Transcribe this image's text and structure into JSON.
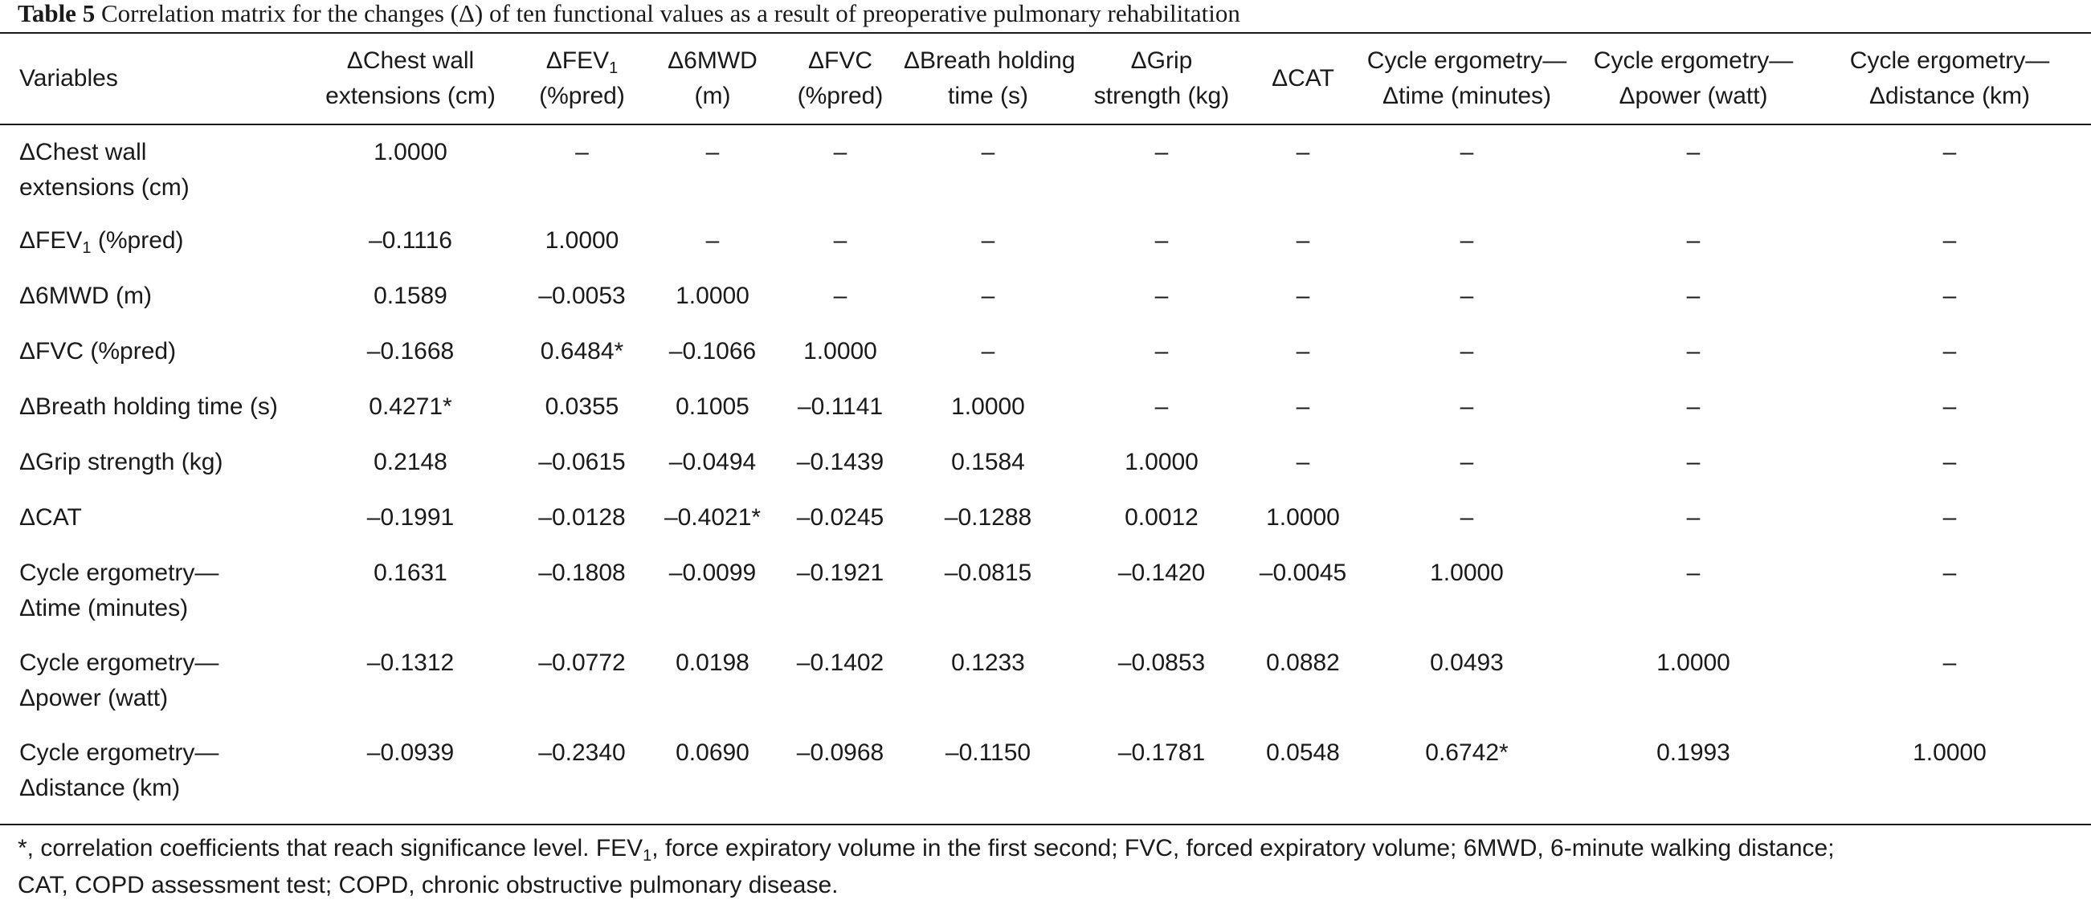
{
  "caption": {
    "label": "Table 5",
    "text": "Correlation matrix for the changes (Δ) of ten functional values as a result of preoperative pulmonary rehabilitation"
  },
  "header": {
    "variables": "Variables",
    "columns": [
      {
        "line1": "ΔChest wall",
        "line2": "extensions (cm)"
      },
      {
        "line1_pre": "ΔFEV",
        "line1_sub": "1",
        "line2": "(%pred)"
      },
      {
        "line1": "Δ6MWD",
        "line2": "(m)"
      },
      {
        "line1": "ΔFVC",
        "line2": "(%pred)"
      },
      {
        "line1": "ΔBreath holding",
        "line2": "time (s)"
      },
      {
        "line1": "ΔGrip",
        "line2": "strength (kg)"
      },
      {
        "line1": "ΔCAT",
        "line2": ""
      },
      {
        "line1": "Cycle ergometry—",
        "line2": "Δtime (minutes)"
      },
      {
        "line1": "Cycle ergometry—",
        "line2": "Δpower (watt)"
      },
      {
        "line1": "Cycle ergometry—",
        "line2": "Δdistance (km)"
      }
    ]
  },
  "rows": [
    {
      "label1": "ΔChest wall",
      "label2": "extensions (cm)",
      "values": [
        "1.0000",
        "–",
        "–",
        "–",
        "–",
        "–",
        "–",
        "–",
        "–",
        "–"
      ]
    },
    {
      "label_pre": "ΔFEV",
      "label_sub": "1",
      "label_post": " (%pred)",
      "values": [
        "–0.1116",
        "1.0000",
        "–",
        "–",
        "–",
        "–",
        "–",
        "–",
        "–",
        "–"
      ]
    },
    {
      "label1": "Δ6MWD (m)",
      "values": [
        "0.1589",
        "–0.0053",
        "1.0000",
        "–",
        "–",
        "–",
        "–",
        "–",
        "–",
        "–"
      ]
    },
    {
      "label1": "ΔFVC (%pred)",
      "values": [
        "–0.1668",
        "0.6484*",
        "–0.1066",
        "1.0000",
        "–",
        "–",
        "–",
        "–",
        "–",
        "–"
      ]
    },
    {
      "label1": "ΔBreath holding time (s)",
      "values": [
        "0.4271*",
        "0.0355",
        "0.1005",
        "–0.1141",
        "1.0000",
        "–",
        "–",
        "–",
        "–",
        "–"
      ]
    },
    {
      "label1": "ΔGrip strength (kg)",
      "values": [
        "0.2148",
        "–0.0615",
        "–0.0494",
        "–0.1439",
        "0.1584",
        "1.0000",
        "–",
        "–",
        "–",
        "–"
      ]
    },
    {
      "label1": "ΔCAT",
      "values": [
        "–0.1991",
        "–0.0128",
        "–0.4021*",
        "–0.0245",
        "–0.1288",
        "0.0012",
        "1.0000",
        "–",
        "–",
        "–"
      ]
    },
    {
      "label1": "Cycle ergometry—",
      "label2": "Δtime (minutes)",
      "values": [
        "0.1631",
        "–0.1808",
        "–0.0099",
        "–0.1921",
        "–0.0815",
        "–0.1420",
        "–0.0045",
        "1.0000",
        "–",
        "–"
      ]
    },
    {
      "label1": "Cycle ergometry—",
      "label2": "Δpower (watt)",
      "values": [
        "–0.1312",
        "–0.0772",
        "0.0198",
        "–0.1402",
        "0.1233",
        "–0.0853",
        "0.0882",
        "0.0493",
        "1.0000",
        "–"
      ]
    },
    {
      "label1": "Cycle ergometry—",
      "label2": "Δdistance (km)",
      "values": [
        "–0.0939",
        "–0.2340",
        "0.0690",
        "–0.0968",
        "–0.1150",
        "–0.1781",
        "0.0548",
        "0.6742*",
        "0.1993",
        "1.0000"
      ]
    }
  ],
  "footnote": {
    "line1_pre": "*, correlation coefficients that reach significance level. FEV",
    "line1_sub": "1",
    "line1_post": ", force expiratory volume in the first second; FVC, forced expiratory volume; 6MWD, 6-minute walking distance;",
    "line2": "CAT, COPD assessment test; COPD, chronic obstructive pulmonary disease."
  }
}
